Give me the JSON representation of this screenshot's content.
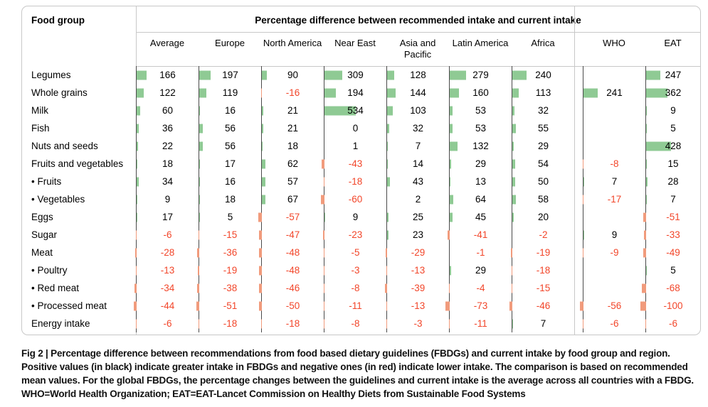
{
  "colors": {
    "positive_bar": "#8fca94",
    "negative_bar": "#f19b7c",
    "negative_text": "#f2462a",
    "positive_text": "#000000",
    "grid_dark": "#4a4a4a",
    "grid_light": "#c8c8c8",
    "background": "#ffffff"
  },
  "caption": "Fig 2 | Percentage difference between recommendations from food based dietary guidelines (FBDGs) and current intake by food group and region. Positive values (in black) indicate greater intake in FBDGs and negative ones (in red) indicate lower intake. The comparison is based on recommended mean values. For the global FBDGs, the percentage changes between the guidelines and current intake is the average across all countries with a FBDG. WHO=World Health Organization; EAT=EAT-Lancet Commission on Healthy Diets from Sustainable Food Systems",
  "chart_data": {
    "type": "bar",
    "title": "Percentage difference between recommended intake and current intake",
    "row_header_label": "Food group",
    "value_unit": "percent",
    "legend_position": "none",
    "grid": "column axis lines only",
    "categories": [
      "Legumes",
      "Whole grains",
      "Milk",
      "Fish",
      "Nuts and seeds",
      "Fruits and vegetables",
      "• Fruits",
      "• Vegetables",
      "Eggs",
      "Sugar",
      "Meat",
      "• Poultry",
      "• Red meat",
      "• Processed meat",
      "Energy intake"
    ],
    "series": [
      {
        "name": "Average",
        "values": [
          166,
          122,
          60,
          36,
          22,
          18,
          34,
          9,
          17,
          -6,
          -28,
          -13,
          -34,
          -44,
          -6
        ]
      },
      {
        "name": "Europe",
        "values": [
          197,
          119,
          16,
          56,
          56,
          17,
          16,
          18,
          5,
          -15,
          -36,
          -19,
          -38,
          -51,
          -18
        ]
      },
      {
        "name": "North America",
        "values": [
          90,
          -16,
          21,
          21,
          18,
          62,
          57,
          67,
          -57,
          -47,
          -48,
          -48,
          -46,
          -50,
          -18
        ]
      },
      {
        "name": "Near East",
        "values": [
          309,
          194,
          534,
          0,
          1,
          -43,
          -18,
          -60,
          9,
          -23,
          -5,
          -3,
          -8,
          -11,
          -8
        ]
      },
      {
        "name": "Asia and Pacific",
        "values": [
          128,
          144,
          103,
          32,
          7,
          14,
          43,
          2,
          25,
          23,
          -29,
          -13,
          -39,
          -13,
          -3
        ]
      },
      {
        "name": "Latin America",
        "values": [
          279,
          160,
          53,
          53,
          132,
          29,
          13,
          64,
          45,
          -41,
          -1,
          29,
          -4,
          -73,
          -11
        ]
      },
      {
        "name": "Africa",
        "values": [
          240,
          113,
          32,
          55,
          29,
          54,
          50,
          58,
          20,
          -2,
          -19,
          -18,
          -15,
          -46,
          7
        ]
      },
      {
        "name": "WHO",
        "values": [
          null,
          241,
          null,
          null,
          null,
          -8,
          7,
          -17,
          null,
          9,
          -9,
          null,
          null,
          -56,
          -6
        ]
      },
      {
        "name": "EAT",
        "values": [
          247,
          362,
          9,
          5,
          428,
          15,
          28,
          7,
          -51,
          -33,
          -49,
          5,
          -68,
          -100,
          -6
        ]
      }
    ]
  }
}
